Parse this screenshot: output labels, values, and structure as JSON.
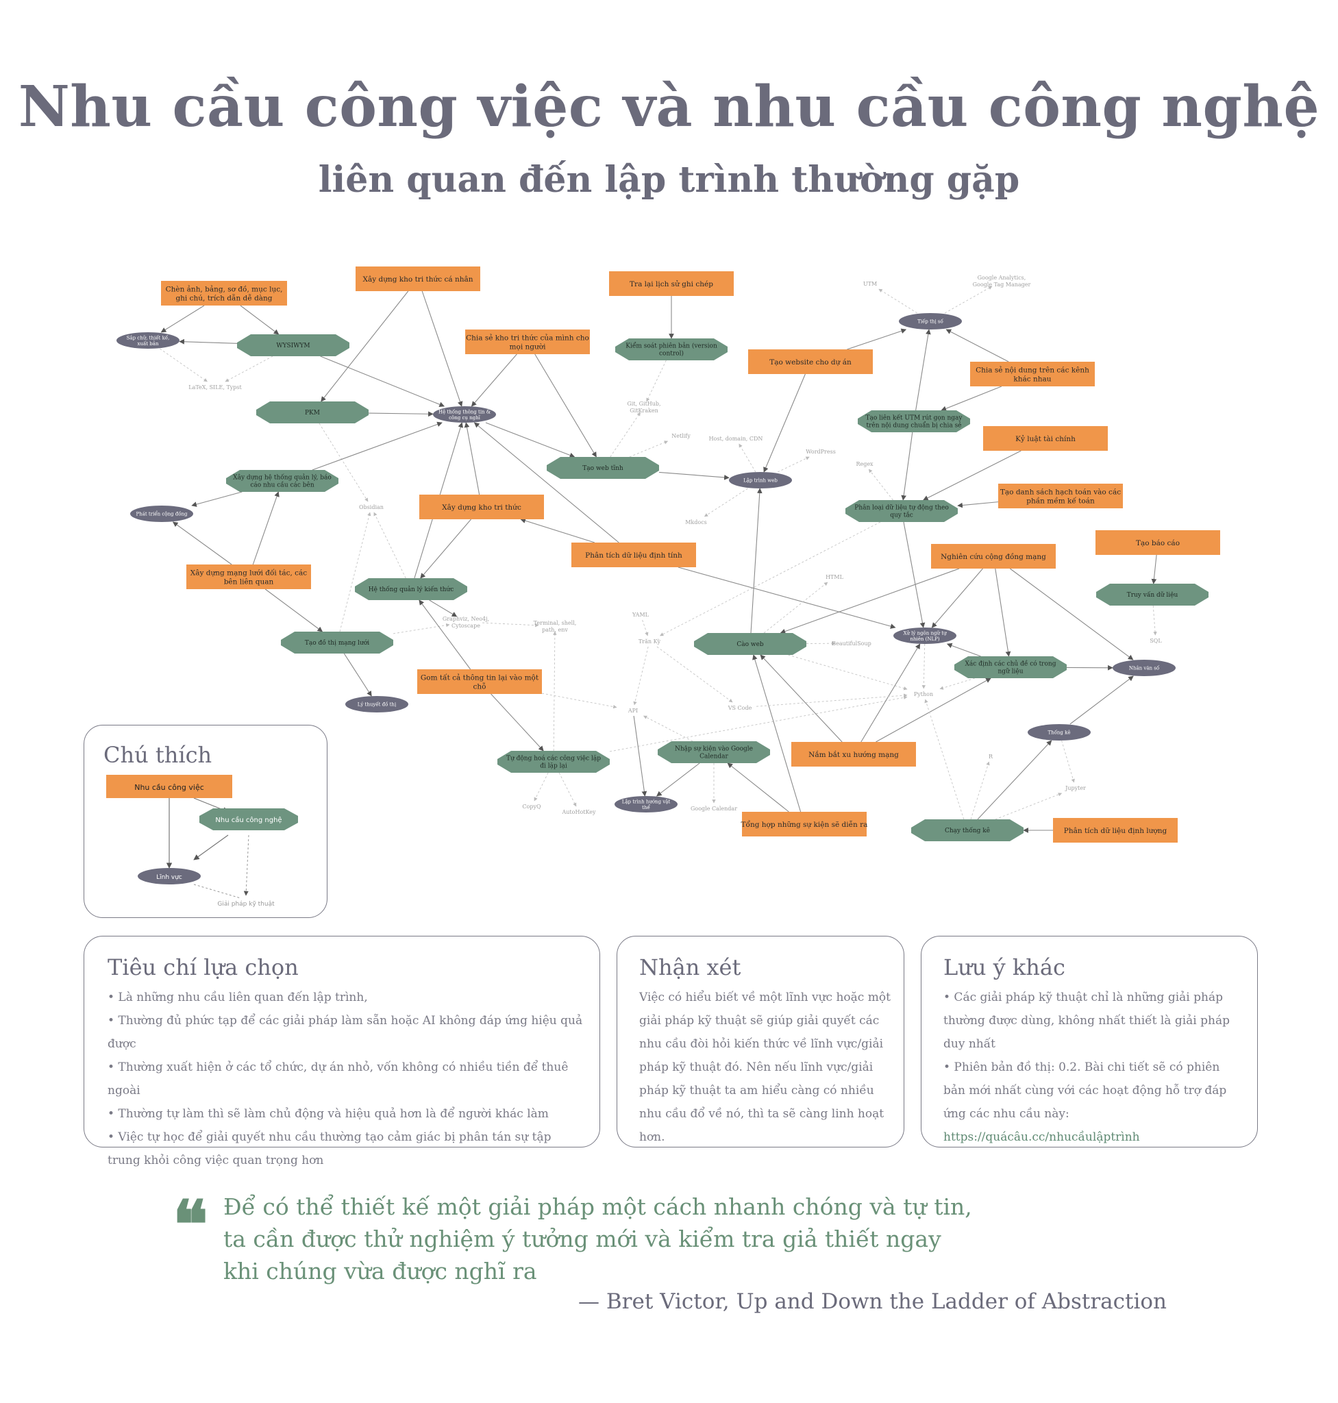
{
  "page": {
    "title": "Nhu cầu công việc và nhu cầu công nghệ",
    "subtitle": "liên quan đến lập trình thường gặp"
  },
  "colors": {
    "need": "#f0964a",
    "tech": "#6e9480",
    "field": "#6b6b7d",
    "text": "#6b6b7b",
    "quote": "#6a9178"
  },
  "diagram": {
    "nodes": {
      "n_chen": {
        "type": "need",
        "label": "Chèn ảnh, bảng, sơ đồ, mục lục, ghi chú, trích dẫn dễ dàng"
      },
      "n_xaykho_cn": {
        "type": "need",
        "label": "Xây dựng kho tri thức cá nhân"
      },
      "n_tralai": {
        "type": "need",
        "label": "Tra lại lịch sử ghi chép"
      },
      "n_chiase_kho": {
        "type": "need",
        "label": "Chia sẻ kho tri thức của mình cho mọi người"
      },
      "n_website": {
        "type": "need",
        "label": "Tạo website cho dự án"
      },
      "n_chiase_kenh": {
        "type": "need",
        "label": "Chia sẻ nội dung trên các kênh khác nhau"
      },
      "n_kyluat": {
        "type": "need",
        "label": "Kỷ luật tài chính"
      },
      "n_dssach": {
        "type": "need",
        "label": "Tạo danh sách hạch toán vào các phần mềm kế toán"
      },
      "n_xaykho": {
        "type": "need",
        "label": "Xây dựng kho tri thức"
      },
      "n_ptdt": {
        "type": "need",
        "label": "Phân tích dữ liệu định tính"
      },
      "n_mangluoi": {
        "type": "need",
        "label": "Xây dựng mạng lưới đối tác, các bên liên quan"
      },
      "n_ncong": {
        "type": "need",
        "label": "Nghiên cứu cộng đồng mạng"
      },
      "n_baocao": {
        "type": "need",
        "label": "Tạo báo cáo"
      },
      "n_gom": {
        "type": "need",
        "label": "Gom tất cả thông tin lại vào một chỗ"
      },
      "n_namxu": {
        "type": "need",
        "label": "Nắm bắt xu hướng mạng"
      },
      "n_tonghop": {
        "type": "need",
        "label": "Tổng hợp những sự kiện sẽ diễn ra"
      },
      "n_ptdl": {
        "type": "need",
        "label": "Phân tích dữ liệu định lượng"
      },
      "t_wysiwym": {
        "type": "tech",
        "label": "WYSIWYM"
      },
      "t_kiemsoat": {
        "type": "tech",
        "label": "Kiểm soát phiên bản (version control)"
      },
      "t_pkm": {
        "type": "tech",
        "label": "PKM"
      },
      "t_utm": {
        "type": "tech",
        "label": "Tạo liên kết UTM rút gọn ngay trên nội dung chuẩn bị chia sẻ"
      },
      "t_webtinh": {
        "type": "tech",
        "label": "Tạo web tĩnh"
      },
      "t_htql": {
        "type": "tech",
        "label": "Xây dựng hệ thống quản lý, báo cáo nhu cầu các bên"
      },
      "t_phanloai": {
        "type": "tech",
        "label": "Phân loại dữ liệu tự động theo quy tắc"
      },
      "t_htqlkt": {
        "type": "tech",
        "label": "Hệ thống quản lý kiến thức"
      },
      "t_truyvan": {
        "type": "tech",
        "label": "Truy vấn dữ liệu"
      },
      "t_dothi": {
        "type": "tech",
        "label": "Tạo đồ thị mạng lưới"
      },
      "t_caoweb": {
        "type": "tech",
        "label": "Cào web"
      },
      "t_xacdinh": {
        "type": "tech",
        "label": "Xác định các chủ đề có trong ngữ liệu"
      },
      "t_tudong": {
        "type": "tech",
        "label": "Tự động hoá các công việc lặp đi lặp lại"
      },
      "t_nhapsk": {
        "type": "tech",
        "label": "Nhập sự kiện vào Google Calendar"
      },
      "t_chaytk": {
        "type": "tech",
        "label": "Chạy thống kê"
      },
      "f_sapchu": {
        "type": "field",
        "label": "Sắp chữ, thiết kế, xuất bản"
      },
      "f_htttin": {
        "type": "field",
        "label": "Hệ thống thông tin & công cụ nghĩ"
      },
      "f_tiepthi": {
        "type": "field",
        "label": "Tiếp thị số"
      },
      "f_laptrinhweb": {
        "type": "field",
        "label": "Lập trình web"
      },
      "f_phattrien": {
        "type": "field",
        "label": "Phát triển cộng đồng"
      },
      "f_nlp": {
        "type": "field",
        "label": "Xử lý ngôn ngữ tự nhiên (NLP)"
      },
      "f_nhanvanso": {
        "type": "field",
        "label": "Nhân văn số"
      },
      "f_lythuyet": {
        "type": "field",
        "label": "Lý thuyết đồ thị"
      },
      "f_thongke": {
        "type": "field",
        "label": "Thống kê"
      },
      "f_lapvatthe": {
        "type": "field",
        "label": "Lập trình hướng vật thể"
      },
      "s_latex": {
        "type": "sol",
        "label": "LaTeX, SILE, Typst"
      },
      "s_git": {
        "type": "sol",
        "label": "Git, GitHub, GitKraken"
      },
      "s_netlify": {
        "type": "sol",
        "label": "Netlify"
      },
      "s_host": {
        "type": "sol",
        "label": "Host, domain, CDN"
      },
      "s_wordpress": {
        "type": "sol",
        "label": "WordPress"
      },
      "s_utm": {
        "type": "sol",
        "label": "UTM"
      },
      "s_ga": {
        "type": "sol",
        "label": "Google Analytics, Google Tag Manager"
      },
      "s_regex": {
        "type": "sol",
        "label": "Regex"
      },
      "s_obsidian": {
        "type": "sol",
        "label": "Obsidian"
      },
      "s_mkdocs": {
        "type": "sol",
        "label": "Mkdocs"
      },
      "s_html": {
        "type": "sol",
        "label": "HTML"
      },
      "s_sql": {
        "type": "sol",
        "label": "SQL"
      },
      "s_yaml": {
        "type": "sol",
        "label": "YAML"
      },
      "s_graphviz": {
        "type": "sol",
        "label": "Graphviz, Neo4j, Cytoscape"
      },
      "s_terminal": {
        "type": "sol",
        "label": "Terminal, shell, path, env"
      },
      "s_tranky": {
        "type": "sol",
        "label": "Trăn Kỳ"
      },
      "s_bs": {
        "type": "sol",
        "label": "BeautifulSoup"
      },
      "s_python": {
        "type": "sol",
        "label": "Python"
      },
      "s_api": {
        "type": "sol",
        "label": "API"
      },
      "s_vscode": {
        "type": "sol",
        "label": "VS Code"
      },
      "s_r": {
        "type": "sol",
        "label": "R"
      },
      "s_jupyter": {
        "type": "sol",
        "label": "Jupyter"
      },
      "s_copyq": {
        "type": "sol",
        "label": "CopyQ"
      },
      "s_autohotkey": {
        "type": "sol",
        "label": "AutoHotKey"
      },
      "s_gcal": {
        "type": "sol",
        "label": "Google Calendar"
      }
    },
    "edges": [
      [
        "n_chen",
        "t_wysiwym",
        "s"
      ],
      [
        "n_chen",
        "f_sapchu",
        "s"
      ],
      [
        "t_wysiwym",
        "f_sapchu",
        "s"
      ],
      [
        "t_wysiwym",
        "f_htttin",
        "s"
      ],
      [
        "f_sapchu",
        "s_latex",
        "d"
      ],
      [
        "t_wysiwym",
        "s_latex",
        "d"
      ],
      [
        "n_xaykho_cn",
        "t_pkm",
        "s"
      ],
      [
        "n_xaykho_cn",
        "f_htttin",
        "s"
      ],
      [
        "t_pkm",
        "f_htttin",
        "s"
      ],
      [
        "t_pkm",
        "s_obsidian",
        "d"
      ],
      [
        "n_chiase_kho",
        "f_htttin",
        "s"
      ],
      [
        "n_chiase_kho",
        "t_webtinh",
        "s"
      ],
      [
        "n_tralai",
        "t_kiemsoat",
        "s"
      ],
      [
        "t_kiemsoat",
        "s_git",
        "d"
      ],
      [
        "t_webtinh",
        "s_git",
        "d"
      ],
      [
        "t_webtinh",
        "s_netlify",
        "d"
      ],
      [
        "t_webtinh",
        "f_laptrinhweb",
        "s"
      ],
      [
        "n_website",
        "f_laptrinhweb",
        "s"
      ],
      [
        "n_website",
        "f_tiepthi",
        "s"
      ],
      [
        "f_laptrinhweb",
        "s_host",
        "d"
      ],
      [
        "f_laptrinhweb",
        "s_wordpress",
        "d"
      ],
      [
        "f_laptrinhweb",
        "s_mkdocs",
        "d"
      ],
      [
        "f_tiepthi",
        "s_utm",
        "d"
      ],
      [
        "f_tiepthi",
        "s_ga",
        "d"
      ],
      [
        "n_chiase_kenh",
        "f_tiepthi",
        "s"
      ],
      [
        "n_chiase_kenh",
        "t_utm",
        "s"
      ],
      [
        "t_utm",
        "f_tiepthi",
        "s"
      ],
      [
        "t_utm",
        "t_phanloai",
        "s"
      ],
      [
        "n_kyluat",
        "t_phanloai",
        "s"
      ],
      [
        "n_dssach",
        "t_phanloai",
        "s"
      ],
      [
        "t_phanloai",
        "s_regex",
        "d"
      ],
      [
        "t_phanloai",
        "f_nlp",
        "s"
      ],
      [
        "t_phanloai",
        "s_tranky",
        "d"
      ],
      [
        "t_htql",
        "f_htttin",
        "s"
      ],
      [
        "t_htql",
        "f_phattrien",
        "s"
      ],
      [
        "n_mangluoi",
        "t_htql",
        "s"
      ],
      [
        "n_mangluoi",
        "f_phattrien",
        "s"
      ],
      [
        "n_mangluoi",
        "t_dothi",
        "s"
      ],
      [
        "t_dothi",
        "f_lythuyet",
        "s"
      ],
      [
        "t_dothi",
        "s_graphviz",
        "d"
      ],
      [
        "t_dothi",
        "s_obsidian",
        "d"
      ],
      [
        "n_xaykho",
        "t_htqlkt",
        "s"
      ],
      [
        "n_xaykho",
        "f_htttin",
        "s"
      ],
      [
        "t_htqlkt",
        "f_htttin",
        "s"
      ],
      [
        "t_htqlkt",
        "s_obsidian",
        "d"
      ],
      [
        "n_ptdt",
        "f_htttin",
        "s"
      ],
      [
        "n_ptdt",
        "n_xaykho",
        "s"
      ],
      [
        "n_ptdt",
        "f_nlp",
        "s"
      ],
      [
        "n_gom",
        "t_htqlkt",
        "s"
      ],
      [
        "n_gom",
        "t_tudong",
        "s"
      ],
      [
        "n_gom",
        "s_api",
        "d"
      ],
      [
        "t_tudong",
        "s_copyq",
        "d"
      ],
      [
        "t_tudong",
        "s_autohotkey",
        "d"
      ],
      [
        "t_tudong",
        "s_terminal",
        "d"
      ],
      [
        "t_tudong",
        "s_python",
        "d"
      ],
      [
        "n_ncong",
        "t_caoweb",
        "s"
      ],
      [
        "n_ncong",
        "f_nlp",
        "s"
      ],
      [
        "n_ncong",
        "t_xacdinh",
        "s"
      ],
      [
        "n_ncong",
        "f_nhanvanso",
        "s"
      ],
      [
        "n_baocao",
        "t_truyvan",
        "s"
      ],
      [
        "t_truyvan",
        "s_sql",
        "d"
      ],
      [
        "t_caoweb",
        "f_laptrinhweb",
        "s"
      ],
      [
        "t_caoweb",
        "s_bs",
        "d"
      ],
      [
        "t_caoweb",
        "s_html",
        "d"
      ],
      [
        "t_caoweb",
        "s_python",
        "d"
      ],
      [
        "t_xacdinh",
        "f_nlp",
        "s"
      ],
      [
        "t_xacdinh",
        "f_nhanvanso",
        "s"
      ],
      [
        "t_xacdinh",
        "s_python",
        "d"
      ],
      [
        "n_namxu",
        "t_caoweb",
        "s"
      ],
      [
        "n_namxu",
        "f_nlp",
        "s"
      ],
      [
        "n_namxu",
        "t_xacdinh",
        "s"
      ],
      [
        "n_tonghop",
        "t_caoweb",
        "s"
      ],
      [
        "n_tonghop",
        "t_nhapsk",
        "s"
      ],
      [
        "t_nhapsk",
        "f_lapvatthe",
        "s"
      ],
      [
        "t_nhapsk",
        "s_gcal",
        "d"
      ],
      [
        "t_nhapsk",
        "s_api",
        "d"
      ],
      [
        "s_api",
        "f_lapvatthe",
        "s"
      ],
      [
        "n_ptdl",
        "t_chaytk",
        "s"
      ],
      [
        "t_chaytk",
        "f_thongke",
        "s"
      ],
      [
        "t_chaytk",
        "s_r",
        "d"
      ],
      [
        "t_chaytk",
        "s_jupyter",
        "d"
      ],
      [
        "t_chaytk",
        "s_python",
        "d"
      ],
      [
        "f_nlp",
        "s_python",
        "d"
      ],
      [
        "f_thongke",
        "s_jupyter",
        "d"
      ],
      [
        "f_thongke",
        "f_nhanvanso",
        "s"
      ],
      [
        "s_yaml",
        "s_tranky",
        "d"
      ],
      [
        "s_tranky",
        "s_api",
        "d"
      ],
      [
        "s_tranky",
        "s_vscode",
        "d"
      ],
      [
        "s_vscode",
        "s_python",
        "d"
      ],
      [
        "s_graphviz",
        "s_terminal",
        "d"
      ],
      [
        "t_htqlkt",
        "s_graphviz",
        "s"
      ],
      [
        "f_htttin",
        "t_webtinh",
        "s"
      ]
    ]
  },
  "legend": {
    "title": "Chú thích",
    "need": "Nhu cầu công việc",
    "tech": "Nhu cầu công nghệ",
    "field": "Lĩnh vực",
    "sol": "Giải pháp kỹ thuật"
  },
  "criteria": {
    "title": "Tiêu chí lựa chọn",
    "items": [
      "• Là những nhu cầu liên quan đến lập trình,",
      "• Thường đủ phức tạp để các giải pháp làm sẵn hoặc AI không đáp ứng hiệu quả được",
      "• Thường xuất hiện ở các tổ chức, dự án nhỏ, vốn không có nhiều tiền để thuê ngoài",
      "• Thường tự làm thì sẽ làm chủ động và hiệu quả hơn là để người khác làm",
      "• Việc tự học để giải quyết nhu cầu thường tạo cảm giác bị phân tán sự tập trung khỏi công việc quan trọng hơn"
    ]
  },
  "remarks": {
    "title": "Nhận xét",
    "text": "Việc có hiểu biết về một lĩnh vực hoặc một giải pháp kỹ thuật sẽ giúp giải quyết các nhu cầu đòi hỏi kiến thức về lĩnh vực/giải pháp kỹ thuật đó. Nên nếu lĩnh vực/giải pháp kỹ thuật ta am hiểu càng có nhiều nhu cầu đổ về nó, thì ta sẽ càng linh hoạt hơn."
  },
  "other": {
    "title": "Lưu ý khác",
    "p1": "• Các giải pháp kỹ thuật chỉ là những giải pháp thường được dùng, không nhất thiết là giải pháp duy nhất",
    "p2": "• Phiên bản đồ thị: 0.2. Bài chi tiết sẽ có phiên bản mới nhất cùng với các hoạt động hỗ trợ đáp ứng các nhu cầu này:",
    "link": "https://quácâu.cc/nhucầulậptrình"
  },
  "quote": {
    "mark": "❝",
    "text": "Để có thể thiết kế một giải pháp một cách nhanh chóng và tự tin, ta cần được thử nghiệm ý tưởng mới và kiểm tra giả thiết ngay khi chúng vừa được nghĩ ra",
    "attribution": "— Bret Victor, Up and Down the Ladder of Abstraction"
  }
}
